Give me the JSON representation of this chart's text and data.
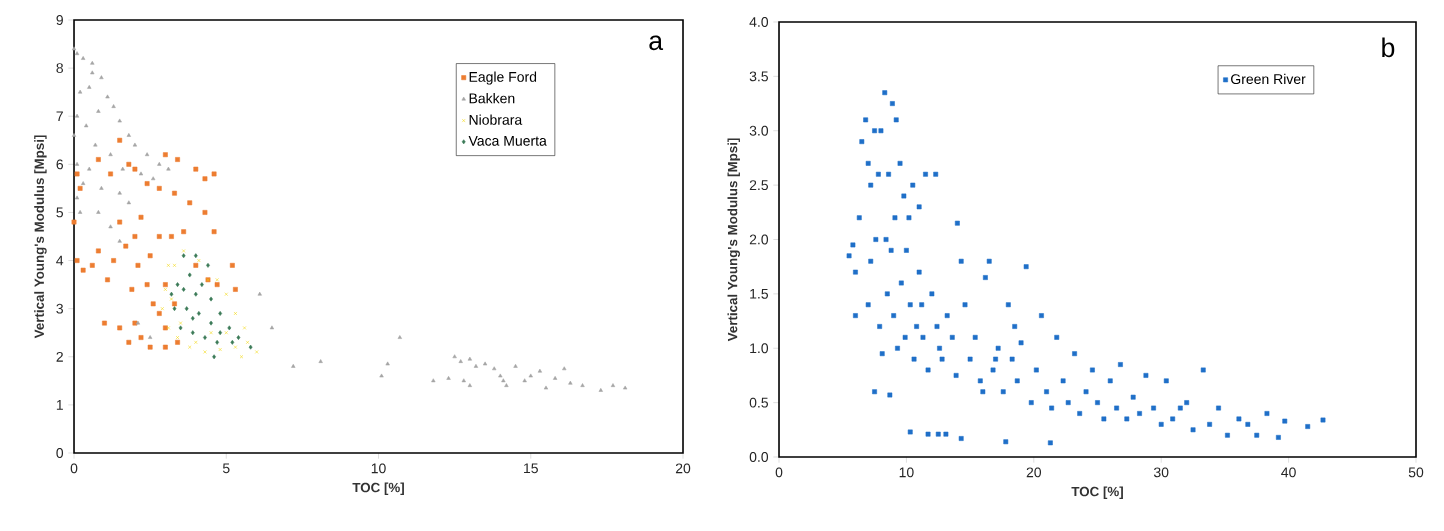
{
  "chart_data": [
    {
      "type": "scatter",
      "xlabel": "TOC [%]",
      "ylabel": "Vertical Young's Modulus [Mpsi]",
      "xlim": [
        0,
        20
      ],
      "ylim": [
        0,
        9
      ],
      "xticks": [
        0,
        5,
        10,
        15,
        20
      ],
      "yticks": [
        0,
        1,
        2,
        3,
        4,
        5,
        6,
        7,
        8,
        9
      ],
      "grid": false,
      "legend": "top right",
      "annotations": [
        "a"
      ],
      "series": [
        {
          "name": "Eagle Ford",
          "color": "#ed7d31",
          "marker": "square",
          "x": [
            0.1,
            0.2,
            0,
            0.1,
            0.3,
            0.6,
            0.8,
            1.1,
            1.3,
            1.5,
            1.7,
            2.0,
            2.1,
            1.9,
            2.4,
            2.6,
            2.8,
            3.0,
            2.5,
            3.0,
            3.4,
            2.2,
            1.0,
            1.5,
            1.8,
            3.2,
            3.6,
            4.0,
            4.4,
            4.7,
            5.2,
            5.3,
            4.6,
            3.8,
            4.3,
            3.3,
            2.8,
            2.4,
            3.0,
            3.4,
            4.0,
            4.6,
            4.3,
            1.5,
            1.8,
            2.0,
            1.2,
            0.8,
            2.2,
            2.8,
            2.5,
            3.0,
            3.3,
            2.0
          ],
          "values": [
            5.8,
            5.5,
            4.8,
            4.0,
            3.8,
            3.9,
            4.2,
            3.6,
            4.0,
            4.8,
            4.3,
            4.5,
            3.9,
            3.4,
            3.5,
            3.1,
            2.9,
            2.6,
            2.2,
            2.2,
            2.3,
            2.4,
            2.7,
            2.6,
            2.3,
            4.5,
            4.6,
            3.9,
            3.6,
            3.5,
            3.9,
            3.4,
            4.6,
            5.2,
            5.0,
            5.4,
            5.5,
            5.6,
            6.2,
            6.1,
            5.9,
            5.8,
            5.7,
            6.5,
            6.0,
            5.9,
            5.8,
            6.1,
            4.9,
            4.5,
            4.1,
            3.5,
            3.1,
            2.7
          ]
        },
        {
          "name": "Bakken",
          "color": "#a5a5a5",
          "marker": "triangle",
          "x": [
            0,
            0.1,
            0.3,
            0.6,
            0.9,
            0.2,
            0.5,
            1.1,
            1.3,
            0.8,
            0.1,
            0.4,
            1.5,
            1.8,
            2.0,
            2.4,
            2.8,
            3.1,
            2.6,
            1.2,
            0.7,
            0.1,
            0.3,
            0.1,
            0.9,
            1.5,
            1.8,
            0.8,
            1.2,
            1.5,
            0.5,
            1.6,
            2.2,
            0.0,
            0.6,
            0.2,
            2.1,
            2.5,
            6.1,
            6.5,
            7.2,
            8.1,
            10.1,
            10.3,
            10.7,
            11.8,
            12.3,
            12.5,
            12.8,
            13.0,
            13.0,
            13.2,
            13.5,
            13.8,
            14.0,
            14.2,
            14.5,
            14.8,
            15.0,
            15.3,
            15.5,
            15.8,
            16.1,
            16.3,
            16.7,
            17.3,
            17.7,
            18.1,
            12.7,
            14.1
          ],
          "values": [
            8.4,
            8.3,
            8.2,
            8.1,
            7.8,
            7.5,
            7.6,
            7.4,
            7.2,
            7.1,
            7.0,
            6.8,
            6.9,
            6.6,
            6.4,
            6.2,
            6.0,
            5.9,
            5.7,
            6.2,
            6.4,
            6.0,
            5.6,
            5.3,
            5.5,
            5.4,
            5.2,
            5.0,
            4.7,
            4.4,
            5.9,
            5.9,
            5.8,
            6.6,
            7.9,
            5.0,
            2.7,
            2.4,
            3.3,
            2.6,
            1.8,
            1.9,
            1.6,
            1.85,
            2.4,
            1.5,
            1.55,
            2.0,
            1.5,
            1.4,
            1.95,
            1.8,
            1.85,
            1.75,
            1.6,
            1.4,
            1.8,
            1.5,
            1.6,
            1.7,
            1.35,
            1.55,
            1.75,
            1.45,
            1.4,
            1.3,
            1.4,
            1.35,
            1.9,
            1.5
          ]
        },
        {
          "name": "Niobrara",
          "color": "#f2d600",
          "marker": "cross",
          "x": [
            3.0,
            2.9,
            3.1,
            3.4,
            3.8,
            4.3,
            4.8,
            5.3,
            5.7,
            6.0,
            5.6,
            5.3,
            5.0,
            4.7,
            4.4,
            4.1,
            3.6,
            3.3,
            3.1,
            5.5,
            4.0,
            3.5,
            4.5,
            5.0,
            3.2
          ],
          "values": [
            3.4,
            3.0,
            2.6,
            2.4,
            2.2,
            2.1,
            2.15,
            2.2,
            2.3,
            2.1,
            2.6,
            2.9,
            3.3,
            3.6,
            3.6,
            4.0,
            4.2,
            3.9,
            3.9,
            2.0,
            2.3,
            2.7,
            2.5,
            2.5,
            3.2
          ]
        },
        {
          "name": "Vaca Muerta",
          "color": "#3b7a57",
          "marker": "diamond",
          "x": [
            3.3,
            3.6,
            3.8,
            4.0,
            3.6,
            4.2,
            4.5,
            4.8,
            5.1,
            5.4,
            5.8,
            3.5,
            3.9,
            4.3,
            4.7,
            4.5,
            4.1,
            3.7,
            4.0,
            3.4,
            4.4,
            4.8,
            5.2,
            4.6,
            3.2,
            3.9
          ],
          "values": [
            3.0,
            3.4,
            3.7,
            4.1,
            4.1,
            3.5,
            3.2,
            2.9,
            2.6,
            2.4,
            2.2,
            2.6,
            2.5,
            2.4,
            2.3,
            2.7,
            2.9,
            3.0,
            3.3,
            3.5,
            3.9,
            2.5,
            2.3,
            2.0,
            3.3,
            2.8
          ]
        }
      ]
    },
    {
      "type": "scatter",
      "xlabel": "TOC [%]",
      "ylabel": "Vertical Young's Modulus [Mpsi]",
      "xlim": [
        0,
        50
      ],
      "ylim": [
        0,
        4
      ],
      "xticks": [
        0,
        10,
        20,
        30,
        40,
        50
      ],
      "yticks": [
        {
          "value": 0,
          "label": "0.0"
        },
        {
          "value": 0.5,
          "label": "0.5"
        },
        {
          "value": 1,
          "label": "1.0"
        },
        {
          "value": 1.5,
          "label": "1.5"
        },
        {
          "value": 2,
          "label": "2.0"
        },
        {
          "value": 2.5,
          "label": "2.5"
        },
        {
          "value": 3,
          "label": "3.0"
        },
        {
          "value": 3.5,
          "label": "3.5"
        },
        {
          "value": 4,
          "label": "4.0"
        }
      ],
      "grid": false,
      "legend": "top right",
      "annotations": [
        "b"
      ],
      "series": [
        {
          "name": "Green River",
          "color": "#1f6fc8",
          "marker": "square",
          "x": [
            5.5,
            5.8,
            6.0,
            6.0,
            6.3,
            6.5,
            6.8,
            7.0,
            7.2,
            7.5,
            7.8,
            8.0,
            8.3,
            8.6,
            8.9,
            9.2,
            9.5,
            9.8,
            10.2,
            10.5,
            11.0,
            11.5,
            12.3,
            7.0,
            7.2,
            7.6,
            7.9,
            8.1,
            8.5,
            8.8,
            9.0,
            9.3,
            9.6,
            10.0,
            10.3,
            10.6,
            11.0,
            11.3,
            11.7,
            12.0,
            12.4,
            12.8,
            13.2,
            13.6,
            14.0,
            14.3,
            14.6,
            15.0,
            15.4,
            15.8,
            16.2,
            16.5,
            16.8,
            17.2,
            17.6,
            18.0,
            18.3,
            18.7,
            19.0,
            19.4,
            19.8,
            20.2,
            20.6,
            21.0,
            21.4,
            21.8,
            22.3,
            22.7,
            23.2,
            23.6,
            24.1,
            24.6,
            25.0,
            25.5,
            26.0,
            26.5,
            26.8,
            27.3,
            27.8,
            28.3,
            28.8,
            29.4,
            30.0,
            30.4,
            30.9,
            31.5,
            32.0,
            32.5,
            33.3,
            33.8,
            34.5,
            35.2,
            36.1,
            36.8,
            37.5,
            38.3,
            39.2,
            39.7,
            41.5,
            42.7,
            7.5,
            8.7,
            10.3,
            11.7,
            12.5,
            13.1,
            14.3,
            17.8,
            21.3,
            8.4,
            9.1,
            10.8,
            12.6,
            13.9,
            16.0,
            17.0,
            18.5,
            9.9,
            11.2
          ],
          "values": [
            1.85,
            1.95,
            1.7,
            1.3,
            2.2,
            2.9,
            3.1,
            2.7,
            2.5,
            3.0,
            2.6,
            3.0,
            3.35,
            2.6,
            3.25,
            3.1,
            2.7,
            2.4,
            2.2,
            2.5,
            2.3,
            2.6,
            2.6,
            1.4,
            1.8,
            2.0,
            1.2,
            0.95,
            1.5,
            1.9,
            1.3,
            1.0,
            1.6,
            1.9,
            1.4,
            0.9,
            1.7,
            1.1,
            0.8,
            1.5,
            1.2,
            0.9,
            1.3,
            1.1,
            2.15,
            1.8,
            1.4,
            0.9,
            1.1,
            0.7,
            1.65,
            1.8,
            0.8,
            1.0,
            0.6,
            1.4,
            0.9,
            0.7,
            1.05,
            1.75,
            0.5,
            0.8,
            1.3,
            0.6,
            0.45,
            1.1,
            0.7,
            0.5,
            0.95,
            0.4,
            0.6,
            0.8,
            0.5,
            0.35,
            0.7,
            0.45,
            0.85,
            0.35,
            0.55,
            0.4,
            0.75,
            0.45,
            0.3,
            0.7,
            0.35,
            0.45,
            0.5,
            0.25,
            0.8,
            0.3,
            0.45,
            0.2,
            0.35,
            0.3,
            0.2,
            0.4,
            0.18,
            0.33,
            0.28,
            0.34,
            0.6,
            0.57,
            0.23,
            0.21,
            0.21,
            0.21,
            0.17,
            0.14,
            0.13,
            2.0,
            2.2,
            1.2,
            1.0,
            0.75,
            0.6,
            0.9,
            1.2,
            1.1,
            1.4
          ]
        }
      ]
    }
  ]
}
